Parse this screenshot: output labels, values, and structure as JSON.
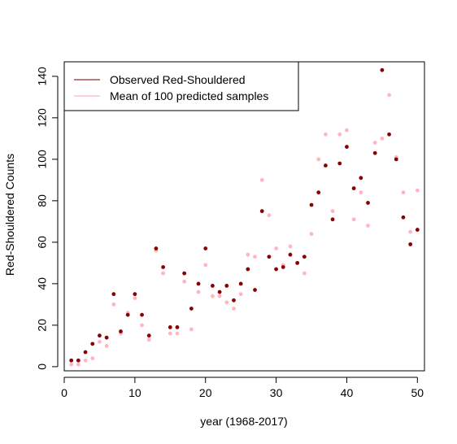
{
  "chart_data": {
    "type": "scatter",
    "xlabel": "year (1968-2017)",
    "ylabel": "Red-Shouldered Counts",
    "xlim": [
      0,
      51
    ],
    "ylim": [
      -2,
      147
    ],
    "xticks": [
      0,
      10,
      20,
      30,
      40,
      50
    ],
    "yticks": [
      0,
      20,
      40,
      60,
      80,
      100,
      120,
      140
    ],
    "xtick_labels": [
      "0",
      "10",
      "20",
      "30",
      "40",
      "50"
    ],
    "ytick_labels": [
      "0",
      "20",
      "40",
      "60",
      "80",
      "100",
      "120",
      "140"
    ],
    "legend_position": "top-left",
    "series": [
      {
        "name": "Observed Red-Shouldered",
        "color": "#8B0000",
        "legend_color": "#A05050",
        "x": [
          1,
          2,
          3,
          4,
          5,
          6,
          7,
          8,
          9,
          10,
          11,
          12,
          13,
          14,
          15,
          16,
          17,
          18,
          19,
          20,
          21,
          22,
          23,
          24,
          25,
          26,
          27,
          28,
          29,
          30,
          31,
          32,
          33,
          34,
          35,
          36,
          37,
          38,
          39,
          40,
          41,
          42,
          43,
          44,
          45,
          46,
          47,
          48,
          49,
          50
        ],
        "y": [
          3,
          3,
          7,
          11,
          15,
          14,
          35,
          17,
          25,
          35,
          25,
          15,
          57,
          48,
          19,
          19,
          45,
          28,
          40,
          57,
          39,
          36,
          39,
          32,
          40,
          47,
          37,
          75,
          53,
          47,
          48,
          54,
          50,
          53,
          78,
          84,
          97,
          71,
          98,
          106,
          86,
          91,
          79,
          103,
          143,
          112,
          100,
          72,
          59,
          66
        ]
      },
      {
        "name": "Mean of 100 predicted samples",
        "color": "#FFB6C1",
        "legend_color": "#FFC0CB",
        "x": [
          1,
          2,
          3,
          4,
          5,
          6,
          7,
          8,
          9,
          10,
          11,
          12,
          13,
          14,
          15,
          16,
          17,
          18,
          19,
          20,
          21,
          22,
          23,
          24,
          25,
          26,
          27,
          28,
          29,
          30,
          31,
          32,
          33,
          34,
          35,
          36,
          37,
          38,
          39,
          40,
          41,
          42,
          43,
          44,
          45,
          46,
          47,
          48,
          49,
          50
        ],
        "y": [
          1,
          1,
          3,
          4,
          12,
          10,
          30,
          16,
          26,
          33,
          20,
          13,
          56,
          45,
          16,
          16,
          41,
          18,
          36,
          49,
          34,
          34,
          31,
          28,
          35,
          54,
          53,
          90,
          73,
          57,
          49,
          58,
          50,
          45,
          64,
          100,
          112,
          75,
          112,
          114,
          71,
          84,
          68,
          108,
          110,
          131,
          101,
          84,
          65,
          85
        ]
      }
    ]
  }
}
